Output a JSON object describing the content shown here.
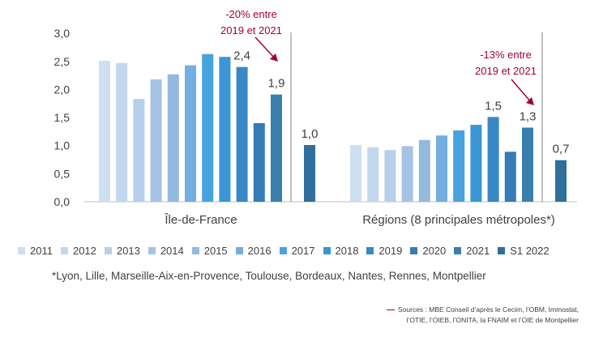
{
  "chart_data": {
    "type": "bar",
    "y_ticks": [
      "3,0",
      "2,5",
      "2,0",
      "1,5",
      "1,0",
      "0,5",
      "0,0"
    ],
    "ylim": [
      0,
      3
    ],
    "groups": [
      {
        "name": "Île-de-France",
        "values": [
          2.51,
          2.47,
          1.83,
          2.18,
          2.27,
          2.43,
          2.63,
          2.58,
          2.4,
          1.4,
          1.91,
          1.01
        ],
        "value_labels": [
          "",
          "",
          "",
          "",
          "",
          "",
          "",
          "",
          "2,4",
          "",
          "1,9",
          "1,0"
        ],
        "annotation": "-20% entre\n2019 et 2021"
      },
      {
        "name": "Régions (8 principales métropoles*)",
        "values": [
          1.01,
          0.97,
          0.92,
          0.99,
          1.1,
          1.18,
          1.27,
          1.37,
          1.51,
          0.89,
          1.32,
          0.74
        ],
        "value_labels": [
          "",
          "",
          "",
          "",
          "",
          "",
          "",
          "",
          "1,5",
          "",
          "1,3",
          "0,7"
        ],
        "annotation": "-13% entre\n2019 et 2021"
      }
    ],
    "series": [
      {
        "name": "2011",
        "color": "#cfdff2"
      },
      {
        "name": "2012",
        "color": "#c3d7ee"
      },
      {
        "name": "2013",
        "color": "#b6cfea"
      },
      {
        "name": "2014",
        "color": "#a5c3e4"
      },
      {
        "name": "2015",
        "color": "#94b9df"
      },
      {
        "name": "2016",
        "color": "#72aee0"
      },
      {
        "name": "2017",
        "color": "#46a3e0"
      },
      {
        "name": "2018",
        "color": "#3b96d5"
      },
      {
        "name": "2019",
        "color": "#3888c6"
      },
      {
        "name": "2020",
        "color": "#367cb6"
      },
      {
        "name": "2021",
        "color": "#3a7eb0"
      },
      {
        "name": "S1 2022",
        "color": "#2e6f9c"
      }
    ],
    "annotation_color": "#a50034"
  },
  "footnote": "*Lyon, Lille, Marseille-Aix-en-Provence, Toulouse, Bordeaux, Nantes, Rennes, Montpellier",
  "sources": {
    "line1": "Sources : MBE Conseil d’après le Cecim, l’OBM, Immostat,",
    "line2": "l’OTIE, l’OIEB, l’ONITA, la FNAIM et l’OIE de Montpellier"
  }
}
